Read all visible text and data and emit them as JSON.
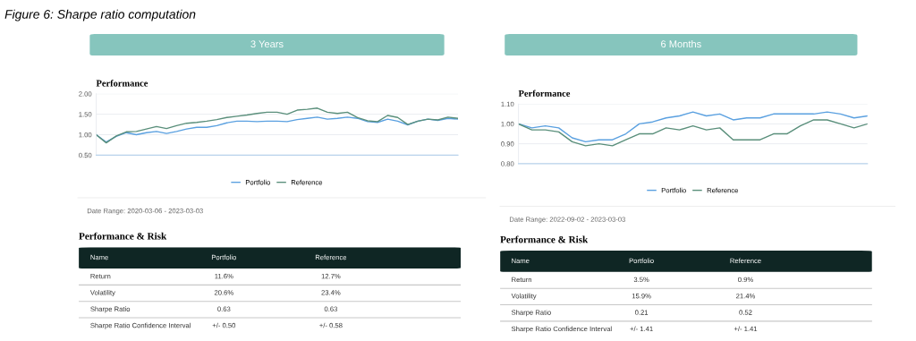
{
  "chart_data": [
    {
      "type": "other",
      "title": "Figure 6: Sharpe ratio computation"
    },
    {
      "type": "line",
      "subtitle": "3 Years",
      "title": "Performance",
      "ylim": [
        0.5,
        2.0
      ],
      "yticks": [
        {
          "value": 0.5,
          "label": "0.50"
        },
        {
          "value": 1.0,
          "label": "1.00"
        },
        {
          "value": 1.5,
          "label": "1.50"
        },
        {
          "value": 2.0,
          "label": "2.00"
        }
      ],
      "tick_labels": "y",
      "grid": "y",
      "legend": "bottom",
      "categories": [
        null,
        null,
        null,
        null,
        null,
        null,
        null,
        null,
        null,
        null,
        null,
        null,
        null,
        null,
        null,
        null,
        null,
        null,
        null,
        null,
        null,
        null,
        null,
        null,
        null,
        null,
        null,
        null,
        null,
        null,
        null,
        null,
        null,
        null,
        null,
        null,
        null
      ],
      "series": [
        {
          "name": "Portfolio",
          "color": "#5aa0e0",
          "values": [
            1.0,
            0.82,
            0.96,
            1.05,
            1.0,
            1.05,
            1.08,
            1.03,
            1.08,
            1.14,
            1.18,
            1.18,
            1.22,
            1.29,
            1.33,
            1.33,
            1.32,
            1.33,
            1.33,
            1.32,
            1.37,
            1.4,
            1.43,
            1.38,
            1.4,
            1.43,
            1.4,
            1.32,
            1.3,
            1.38,
            1.33,
            1.24,
            1.33,
            1.38,
            1.35,
            1.4,
            1.38
          ]
        },
        {
          "name": "Reference",
          "color": "#5a8f7b",
          "values": [
            1.0,
            0.8,
            0.97,
            1.07,
            1.08,
            1.14,
            1.2,
            1.15,
            1.22,
            1.28,
            1.3,
            1.33,
            1.37,
            1.42,
            1.45,
            1.48,
            1.52,
            1.55,
            1.55,
            1.5,
            1.6,
            1.62,
            1.65,
            1.55,
            1.52,
            1.55,
            1.42,
            1.34,
            1.32,
            1.47,
            1.42,
            1.25,
            1.33,
            1.38,
            1.36,
            1.43,
            1.4
          ]
        }
      ],
      "annotations": [
        "Date Range: 2020-03-06 - 2023-03-03"
      ]
    },
    {
      "type": "other",
      "title": "Performance & Risk",
      "annotations": [
        "Name",
        "Portfolio",
        "Reference",
        "Return",
        "11.6%",
        "12.7%",
        "Volatility",
        "20.6%",
        "23.4%",
        "Sharpe Ratio",
        "0.63",
        "0.63",
        "Sharpe Ratio Confidence Interval",
        "+/- 0.50",
        "+/- 0.58"
      ]
    },
    {
      "type": "line",
      "subtitle": "6 Months",
      "title": "Performance",
      "ylim": [
        0.8,
        1.1
      ],
      "yticks": [
        {
          "value": 0.8,
          "label": "0.80"
        },
        {
          "value": 0.9,
          "label": "0.90"
        },
        {
          "value": 1.0,
          "label": "1.00"
        },
        {
          "value": 1.1,
          "label": "1.10"
        }
      ],
      "tick_labels": "y",
      "grid": "y",
      "legend": "bottom",
      "categories": [
        null,
        null,
        null,
        null,
        null,
        null,
        null,
        null,
        null,
        null,
        null,
        null,
        null,
        null,
        null,
        null,
        null,
        null,
        null,
        null,
        null,
        null,
        null,
        null,
        null,
        null,
        null
      ],
      "series": [
        {
          "name": "Portfolio",
          "color": "#5aa0e0",
          "values": [
            1.0,
            0.98,
            0.99,
            0.98,
            0.93,
            0.91,
            0.92,
            0.92,
            0.95,
            1.0,
            1.01,
            1.03,
            1.04,
            1.06,
            1.04,
            1.05,
            1.02,
            1.03,
            1.03,
            1.05,
            1.05,
            1.05,
            1.05,
            1.06,
            1.05,
            1.03,
            1.04
          ]
        },
        {
          "name": "Reference",
          "color": "#5a8f7b",
          "values": [
            1.0,
            0.97,
            0.97,
            0.96,
            0.91,
            0.89,
            0.9,
            0.89,
            0.92,
            0.95,
            0.95,
            0.98,
            0.97,
            0.99,
            0.97,
            0.98,
            0.92,
            0.92,
            0.92,
            0.95,
            0.95,
            0.99,
            1.02,
            1.02,
            1.0,
            0.98,
            1.0
          ]
        }
      ],
      "annotations": [
        "Date Range: 2022-09-02 - 2023-03-03"
      ]
    },
    {
      "type": "other",
      "title": "Performance & Risk",
      "annotations": [
        "Name",
        "Portfolio",
        "Reference",
        "Return",
        "3.5%",
        "0.9%",
        "Volatility",
        "15.9%",
        "21.4%",
        "Sharpe Ratio",
        "0.21",
        "0.52",
        "Sharpe Ratio Confidence Interval",
        "+/- 1.41",
        "+/- 1.41"
      ]
    }
  ]
}
